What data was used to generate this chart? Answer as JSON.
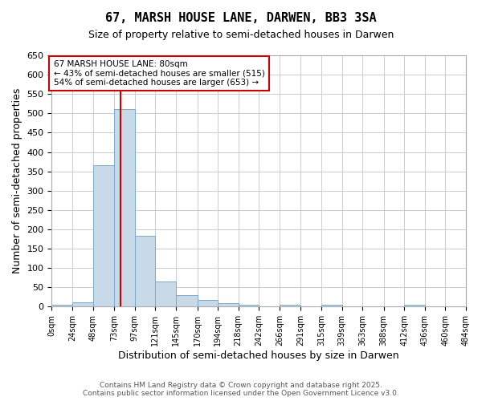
{
  "title": "67, MARSH HOUSE LANE, DARWEN, BB3 3SA",
  "subtitle": "Size of property relative to semi-detached houses in Darwen",
  "xlabel": "Distribution of semi-detached houses by size in Darwen",
  "ylabel": "Number of semi-detached properties",
  "bin_edges": [
    0,
    24,
    48,
    73,
    97,
    121,
    145,
    170,
    194,
    218,
    242,
    266,
    291,
    315,
    339,
    363,
    388,
    412,
    436,
    460,
    484
  ],
  "counts": [
    5,
    12,
    365,
    510,
    183,
    65,
    30,
    17,
    10,
    5,
    0,
    5,
    0,
    5,
    0,
    0,
    0,
    5,
    0,
    0
  ],
  "bar_color": "#c8d9e8",
  "bar_edge_color": "#7aaac8",
  "property_size": 80,
  "property_line_color": "#cc0000",
  "ylim": [
    0,
    650
  ],
  "annotation_text": "67 MARSH HOUSE LANE: 80sqm\n← 43% of semi-detached houses are smaller (515)\n54% of semi-detached houses are larger (653) →",
  "annotation_box_color": "#ffffff",
  "annotation_box_edge": "#cc0000",
  "footer_line1": "Contains HM Land Registry data © Crown copyright and database right 2025.",
  "footer_line2": "Contains public sector information licensed under the Open Government Licence v3.0.",
  "bg_color": "#ffffff",
  "grid_color": "#cccccc",
  "tick_labels": [
    "0sqm",
    "24sqm",
    "48sqm",
    "73sqm",
    "97sqm",
    "121sqm",
    "145sqm",
    "170sqm",
    "194sqm",
    "218sqm",
    "242sqm",
    "266sqm",
    "291sqm",
    "315sqm",
    "339sqm",
    "363sqm",
    "388sqm",
    "412sqm",
    "436sqm",
    "460sqm",
    "484sqm"
  ]
}
